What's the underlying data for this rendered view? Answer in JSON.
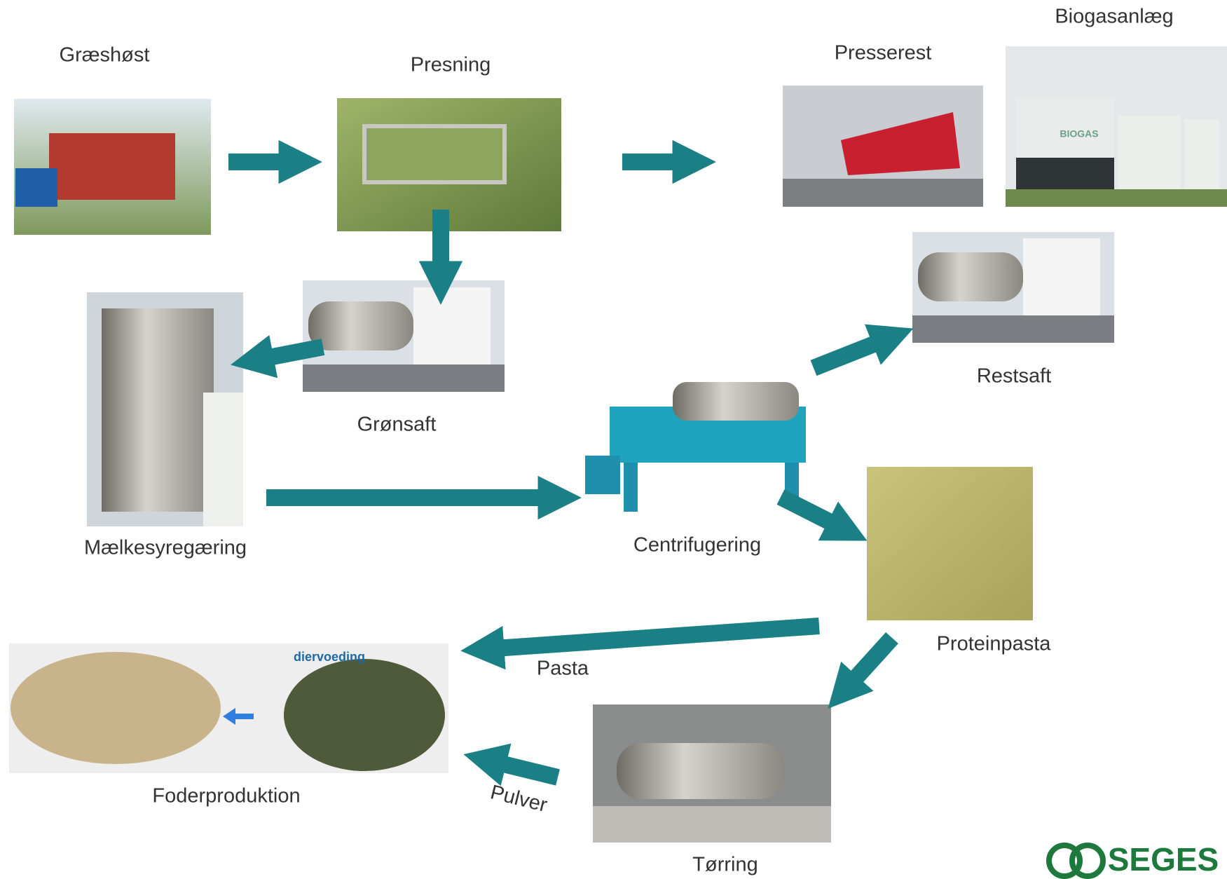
{
  "nodes": [
    {
      "label": "Græshøst"
    },
    {
      "label": "Presning"
    },
    {
      "label": "Presserest"
    },
    {
      "label": "Biogasanlæg",
      "image_text": "BIOGAS"
    },
    {
      "label": "Grønsaft"
    },
    {
      "label": "Mælkesyregæring"
    },
    {
      "label": "Restsaft"
    },
    {
      "label": "Centrifugering"
    },
    {
      "label": "Proteinpasta"
    },
    {
      "label": "Foderproduktion",
      "image_text": "diervoeding"
    },
    {
      "label": "Tørring"
    }
  ],
  "edges": [
    {
      "label": "Pasta"
    },
    {
      "label": "Pulver"
    }
  ],
  "logo": {
    "text": "SEGES"
  }
}
